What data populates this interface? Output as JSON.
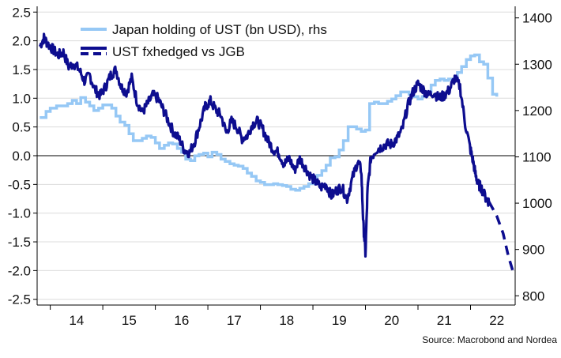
{
  "chart_data": {
    "type": "line",
    "title": "",
    "source_note": "Source: Macrobond and Nordea",
    "colors": {
      "ust_fxhedged": "#0d0d8f",
      "japan_holding": "#96c8f5",
      "zero_line": "#000000",
      "grid": "#dcdcdc"
    },
    "x_axis": {
      "tick_labels": [
        "14",
        "15",
        "16",
        "17",
        "18",
        "19",
        "20",
        "21",
        "22"
      ],
      "range": [
        2013.75,
        2022.85
      ]
    },
    "y_left": {
      "range": [
        -2.6,
        2.6
      ],
      "tick_labels": [
        "2.5",
        "2.0",
        "1.5",
        "1.0",
        "0.5",
        "0.0",
        "-0.5",
        "-1.0",
        "-1.5",
        "-2.0",
        "-2.5"
      ]
    },
    "y_right": {
      "range": [
        780,
        1425
      ],
      "tick_labels": [
        "1400",
        "1300",
        "1200",
        "1100",
        "1000",
        "900",
        "800"
      ]
    },
    "grid": true,
    "zero_line": true,
    "legend_position": "top-left",
    "series": [
      {
        "name": "Japan holding of UST (bn USD), rhs",
        "axis": "right",
        "style": "step",
        "x": [
          2013.8,
          2013.92,
          2014.0,
          2014.12,
          2014.25,
          2014.33,
          2014.42,
          2014.5,
          2014.58,
          2014.67,
          2014.75,
          2014.83,
          2014.92,
          2015.0,
          2015.08,
          2015.17,
          2015.25,
          2015.33,
          2015.42,
          2015.5,
          2015.58,
          2015.67,
          2015.75,
          2015.83,
          2015.92,
          2016.0,
          2016.08,
          2016.17,
          2016.25,
          2016.33,
          2016.42,
          2016.5,
          2016.58,
          2016.67,
          2016.75,
          2016.83,
          2016.92,
          2017.0,
          2017.08,
          2017.17,
          2017.25,
          2017.33,
          2017.42,
          2017.5,
          2017.58,
          2017.67,
          2017.75,
          2017.83,
          2017.92,
          2018.0,
          2018.08,
          2018.17,
          2018.25,
          2018.33,
          2018.42,
          2018.5,
          2018.58,
          2018.67,
          2018.75,
          2018.83,
          2018.92,
          2019.0,
          2019.08,
          2019.17,
          2019.25,
          2019.33,
          2019.42,
          2019.5,
          2019.58,
          2019.67,
          2019.75,
          2019.83,
          2019.92,
          2020.0,
          2020.08,
          2020.17,
          2020.25,
          2020.33,
          2020.42,
          2020.5,
          2020.58,
          2020.67,
          2020.75,
          2020.83,
          2020.92,
          2021.0,
          2021.08,
          2021.17,
          2021.25,
          2021.33,
          2021.42,
          2021.5,
          2021.58,
          2021.67,
          2021.75,
          2021.83,
          2021.92,
          2022.0,
          2022.08,
          2022.17,
          2022.25,
          2022.33,
          2022.42,
          2022.5
        ],
        "values": [
          1185,
          1198,
          1205,
          1210,
          1210,
          1215,
          1222,
          1215,
          1228,
          1218,
          1210,
          1200,
          1205,
          1212,
          1212,
          1205,
          1188,
          1175,
          1168,
          1150,
          1135,
          1135,
          1140,
          1145,
          1142,
          1130,
          1118,
          1125,
          1130,
          1128,
          1118,
          1110,
          1095,
          1092,
          1102,
          1105,
          1108,
          1100,
          1110,
          1105,
          1095,
          1090,
          1085,
          1082,
          1080,
          1075,
          1065,
          1058,
          1048,
          1045,
          1040,
          1040,
          1042,
          1040,
          1038,
          1036,
          1030,
          1028,
          1032,
          1036,
          1042,
          1055,
          1060,
          1070,
          1082,
          1098,
          1100,
          1115,
          1135,
          1165,
          1165,
          1160,
          1155,
          1158,
          1215,
          1218,
          1215,
          1215,
          1220,
          1225,
          1232,
          1240,
          1240,
          1235,
          1230,
          1225,
          1230,
          1240,
          1255,
          1265,
          1268,
          1265,
          1268,
          1268,
          1282,
          1295,
          1310,
          1318,
          1320,
          1305,
          1300,
          1270,
          1235,
          1230
        ]
      },
      {
        "name": "UST fxhedged vs JGB",
        "axis": "left",
        "style": "solid-then-dashed",
        "x": [
          2013.8,
          2013.88,
          2013.95,
          2014.05,
          2014.15,
          2014.25,
          2014.35,
          2014.45,
          2014.55,
          2014.65,
          2014.75,
          2014.85,
          2014.95,
          2015.05,
          2015.15,
          2015.25,
          2015.35,
          2015.45,
          2015.55,
          2015.65,
          2015.75,
          2015.85,
          2015.95,
          2016.05,
          2016.15,
          2016.25,
          2016.35,
          2016.45,
          2016.55,
          2016.65,
          2016.75,
          2016.85,
          2016.95,
          2017.05,
          2017.15,
          2017.25,
          2017.35,
          2017.45,
          2017.55,
          2017.65,
          2017.75,
          2017.85,
          2017.95,
          2018.05,
          2018.15,
          2018.25,
          2018.35,
          2018.45,
          2018.55,
          2018.65,
          2018.75,
          2018.85,
          2018.95,
          2019.05,
          2019.15,
          2019.25,
          2019.35,
          2019.45,
          2019.55,
          2019.65,
          2019.75,
          2019.85,
          2019.92,
          2019.96,
          2020.0,
          2020.04,
          2020.1,
          2020.2,
          2020.3,
          2020.4,
          2020.5,
          2020.6,
          2020.7,
          2020.8,
          2020.9,
          2021.0,
          2021.1,
          2021.2,
          2021.3,
          2021.4,
          2021.5,
          2021.6,
          2021.7,
          2021.8,
          2021.9,
          2022.0,
          2022.05,
          2022.1,
          2022.15,
          2022.2,
          2022.3,
          2022.35
        ],
        "values": [
          1.9,
          2.05,
          1.95,
          1.85,
          1.75,
          1.8,
          1.55,
          1.6,
          1.5,
          1.3,
          1.4,
          1.15,
          1.05,
          1.2,
          1.4,
          1.5,
          1.2,
          1.1,
          1.35,
          0.95,
          0.75,
          0.9,
          1.05,
          1.0,
          0.8,
          0.6,
          0.4,
          0.3,
          0.1,
          0.05,
          0.25,
          0.55,
          0.85,
          0.95,
          0.8,
          0.7,
          0.4,
          0.6,
          0.5,
          0.3,
          0.35,
          0.55,
          0.6,
          0.45,
          0.25,
          0.1,
          0.05,
          -0.15,
          -0.05,
          -0.25,
          -0.05,
          -0.2,
          -0.35,
          -0.45,
          -0.55,
          -0.5,
          -0.7,
          -0.6,
          -0.55,
          -0.75,
          -0.4,
          -0.1,
          -0.25,
          -1.2,
          -1.7,
          -0.6,
          -0.05,
          0.1,
          0.15,
          0.2,
          0.2,
          0.3,
          0.45,
          0.85,
          1.1,
          1.25,
          1.15,
          1.05,
          1.1,
          1.0,
          1.05,
          1.15,
          1.35,
          1.2,
          0.55,
          0.1,
          -0.1,
          -0.35,
          -0.5,
          -0.55,
          -0.75,
          -0.8
        ],
        "projection": {
          "x": [
            2022.35,
            2022.5,
            2022.62,
            2022.72,
            2022.82
          ],
          "values": [
            -0.8,
            -1.05,
            -1.35,
            -1.75,
            -2.05
          ]
        }
      }
    ]
  }
}
